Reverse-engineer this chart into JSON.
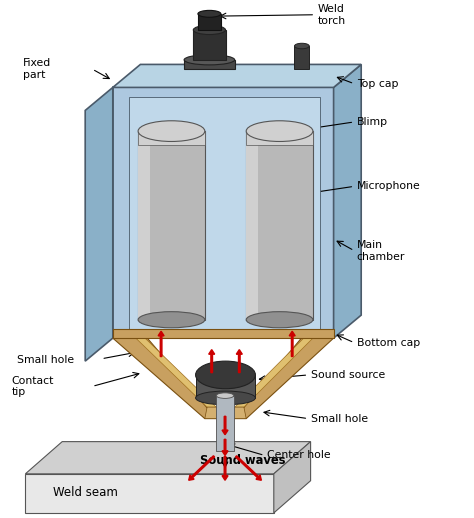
{
  "bg_color": "#ffffff",
  "labels": {
    "weld_torch": "Weld\ntorch",
    "fixed_part": "Fixed\npart",
    "top_cap": "Top cap",
    "blimp": "Blimp",
    "microphone": "Microphone",
    "main_chamber": "Main\nchamber",
    "bottom_cap": "Bottom cap",
    "sound_source": "Sound source",
    "small_hole_left": "Small hole",
    "small_hole_right": "Small hole",
    "contact_tip": "Contact\ntip",
    "center_hole": "Center hole",
    "sound_waves": "Sound waves",
    "weld_seam": "Weld seam"
  },
  "colors": {
    "chamber_blue": "#adc8e0",
    "chamber_blue_dark": "#7aaabf",
    "chamber_side": "#8ab0c8",
    "chamber_top": "#b8d4e4",
    "cylinder_gray": "#b8b8b8",
    "cylinder_gray_light": "#d0d0d0",
    "cylinder_gray_dark": "#909090",
    "torch_black": "#2a2a2a",
    "torch_dark": "#303030",
    "bottom_cap_tan": "#c8a060",
    "bottom_cap_tan_light": "#e0c070",
    "bottom_cap_inner": "#d4b070",
    "sound_source_dark": "#383838",
    "weld_seam_light": "#e8e8e8",
    "weld_seam_mid": "#d0d0d0",
    "red_arrow": "#cc0000",
    "black": "#000000",
    "text_color": "#000000",
    "metal_edge": "#4a5a6a",
    "inner_chamber": "#c0d8ea",
    "center_tube": "#b0b8c0"
  }
}
